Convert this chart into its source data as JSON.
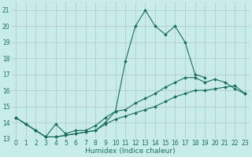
{
  "xlabel": "Humidex (Indice chaleur)",
  "x_hours": [
    0,
    1,
    2,
    3,
    4,
    5,
    6,
    7,
    8,
    9,
    10,
    11,
    12,
    13,
    14,
    15,
    16,
    17,
    18,
    19,
    20,
    21,
    22,
    23
  ],
  "line_peak": [
    14.3,
    13.9,
    13.5,
    13.1,
    13.1,
    13.2,
    13.3,
    13.4,
    13.5,
    14.0,
    14.7,
    17.8,
    20.0,
    21.0,
    20.0,
    19.5,
    20.0,
    19.0,
    17.0,
    16.8,
    null,
    null,
    null,
    null
  ],
  "line_upper": [
    14.3,
    13.9,
    13.5,
    13.1,
    13.9,
    13.3,
    13.5,
    13.5,
    13.8,
    14.3,
    14.7,
    14.8,
    15.2,
    15.5,
    15.8,
    16.2,
    16.5,
    16.8,
    16.8,
    16.5,
    16.7,
    16.5,
    16.1,
    15.8
  ],
  "line_lower": [
    14.3,
    13.9,
    13.5,
    13.1,
    13.1,
    13.2,
    13.3,
    13.4,
    13.5,
    13.9,
    14.2,
    14.4,
    14.6,
    14.8,
    15.0,
    15.3,
    15.6,
    15.8,
    16.0,
    16.0,
    16.1,
    16.2,
    16.3,
    15.8
  ],
  "ylim": [
    13.0,
    21.5
  ],
  "yticks": [
    13,
    14,
    15,
    16,
    17,
    18,
    19,
    20,
    21
  ],
  "xlim": [
    -0.5,
    23.5
  ],
  "bg_color": "#c8ece8",
  "grid_color": "#b0c8c4",
  "line_color": "#1a6e60",
  "markersize": 2.0,
  "linewidth": 0.8,
  "tick_fontsize": 5.5,
  "xlabel_fontsize": 6.5
}
